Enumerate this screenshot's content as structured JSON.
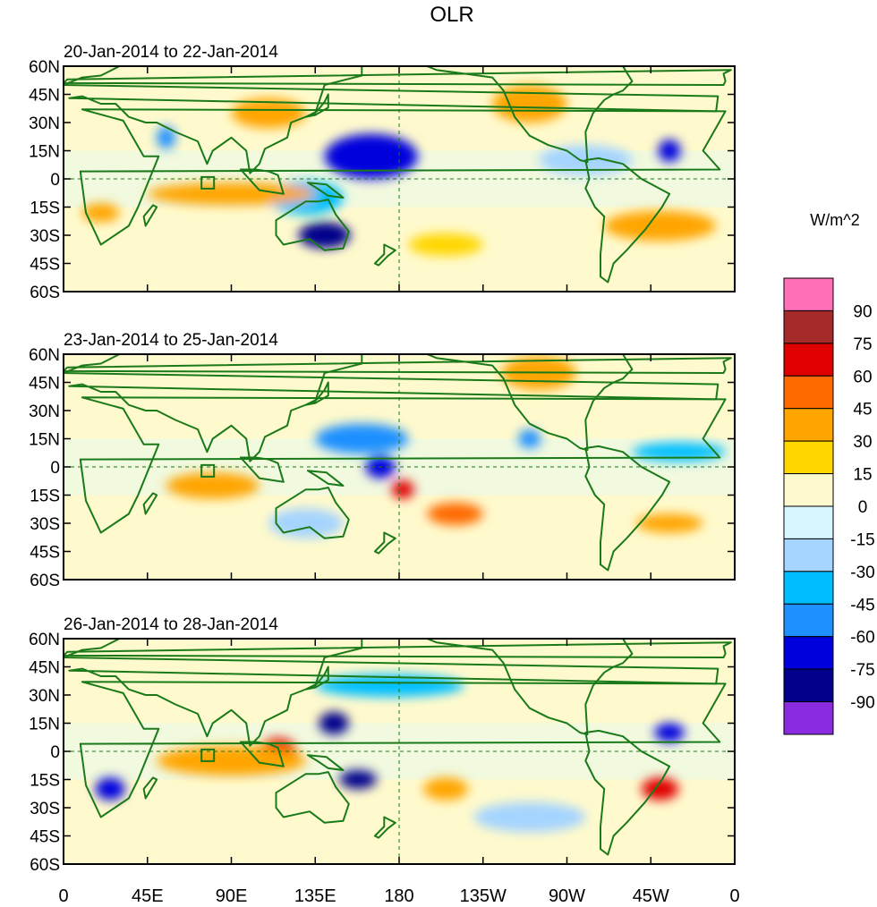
{
  "chart_data": {
    "type": "heatmap",
    "title": "OLR",
    "units": "W/m^2",
    "x_range_deg": [
      0,
      360
    ],
    "y_range_deg": [
      -60,
      60
    ],
    "lon_ticks": [
      "0",
      "45E",
      "90E",
      "135E",
      "180",
      "135W",
      "90W",
      "45W",
      "0"
    ],
    "lat_ticks": [
      "60N",
      "45N",
      "30N",
      "15N",
      "0",
      "15S",
      "30S",
      "45S",
      "60S"
    ],
    "colorbar": {
      "levels": [
        "90",
        "75",
        "60",
        "45",
        "30",
        "15",
        "0",
        "-15",
        "-30",
        "-45",
        "-60",
        "-75",
        "-90"
      ],
      "colors": [
        "#ff6fb8",
        "#a52a2a",
        "#e00000",
        "#ff6a00",
        "#ffa500",
        "#ffd700",
        "#fffacd",
        "#d8f6ff",
        "#a4d4ff",
        "#00bfff",
        "#1e90ff",
        "#0000dd",
        "#00008b",
        "#8a2be2"
      ]
    },
    "panels": [
      {
        "label": "20-Jan-2014 to 22-Jan-2014",
        "anomalies": [
          {
            "lon": 165,
            "lat": 12,
            "value": -65,
            "rlon": 25,
            "rlat": 12
          },
          {
            "lon": 140,
            "lat": -30,
            "value": -90,
            "rlon": 14,
            "rlat": 7
          },
          {
            "lon": 130,
            "lat": -10,
            "value": -45,
            "rlon": 20,
            "rlat": 9
          },
          {
            "lon": 55,
            "lat": 22,
            "value": -50,
            "rlon": 5,
            "rlat": 6
          },
          {
            "lon": 280,
            "lat": 10,
            "value": -30,
            "rlon": 25,
            "rlat": 8
          },
          {
            "lon": 325,
            "lat": 15,
            "value": -75,
            "rlon": 6,
            "rlat": 6
          },
          {
            "lon": 90,
            "lat": -8,
            "value": 30,
            "rlon": 45,
            "rlat": 6
          },
          {
            "lon": 20,
            "lat": -18,
            "value": 40,
            "rlon": 10,
            "rlat": 5
          },
          {
            "lon": 320,
            "lat": -25,
            "value": 35,
            "rlon": 30,
            "rlat": 8
          },
          {
            "lon": 205,
            "lat": -35,
            "value": 25,
            "rlon": 20,
            "rlat": 6
          },
          {
            "lon": 250,
            "lat": 40,
            "value": 30,
            "rlon": 20,
            "rlat": 10
          },
          {
            "lon": 110,
            "lat": 35,
            "value": 30,
            "rlon": 20,
            "rlat": 8
          }
        ]
      },
      {
        "label": "23-Jan-2014 to 25-Jan-2014",
        "anomalies": [
          {
            "lon": 160,
            "lat": 15,
            "value": -50,
            "rlon": 25,
            "rlat": 8
          },
          {
            "lon": 170,
            "lat": 0,
            "value": -65,
            "rlon": 8,
            "rlat": 6
          },
          {
            "lon": 182,
            "lat": -12,
            "value": 70,
            "rlon": 6,
            "rlat": 5
          },
          {
            "lon": 80,
            "lat": -10,
            "value": 30,
            "rlon": 25,
            "rlat": 7
          },
          {
            "lon": 210,
            "lat": -25,
            "value": 45,
            "rlon": 15,
            "rlat": 6
          },
          {
            "lon": 255,
            "lat": 50,
            "value": 35,
            "rlon": 20,
            "rlat": 9
          },
          {
            "lon": 250,
            "lat": 15,
            "value": -50,
            "rlon": 6,
            "rlat": 5
          },
          {
            "lon": 330,
            "lat": 8,
            "value": -40,
            "rlon": 25,
            "rlat": 5
          },
          {
            "lon": 325,
            "lat": -30,
            "value": 35,
            "rlon": 18,
            "rlat": 5
          },
          {
            "lon": 130,
            "lat": -30,
            "value": -30,
            "rlon": 20,
            "rlat": 8
          }
        ]
      },
      {
        "label": "26-Jan-2014 to 28-Jan-2014",
        "anomalies": [
          {
            "lon": 145,
            "lat": 15,
            "value": -90,
            "rlon": 8,
            "rlat": 6
          },
          {
            "lon": 158,
            "lat": -15,
            "value": -90,
            "rlon": 10,
            "rlat": 5
          },
          {
            "lon": 115,
            "lat": 0,
            "value": 70,
            "rlon": 10,
            "rlat": 7
          },
          {
            "lon": 25,
            "lat": -20,
            "value": -75,
            "rlon": 8,
            "rlat": 6
          },
          {
            "lon": 325,
            "lat": 10,
            "value": -75,
            "rlon": 8,
            "rlat": 5
          },
          {
            "lon": 320,
            "lat": -20,
            "value": 60,
            "rlon": 10,
            "rlat": 6
          },
          {
            "lon": 205,
            "lat": -20,
            "value": 40,
            "rlon": 12,
            "rlat": 6
          },
          {
            "lon": 175,
            "lat": 35,
            "value": -40,
            "rlon": 40,
            "rlat": 6
          },
          {
            "lon": 90,
            "lat": -5,
            "value": 30,
            "rlon": 40,
            "rlat": 8
          },
          {
            "lon": 250,
            "lat": -35,
            "value": -30,
            "rlon": 30,
            "rlat": 8
          }
        ]
      }
    ]
  }
}
